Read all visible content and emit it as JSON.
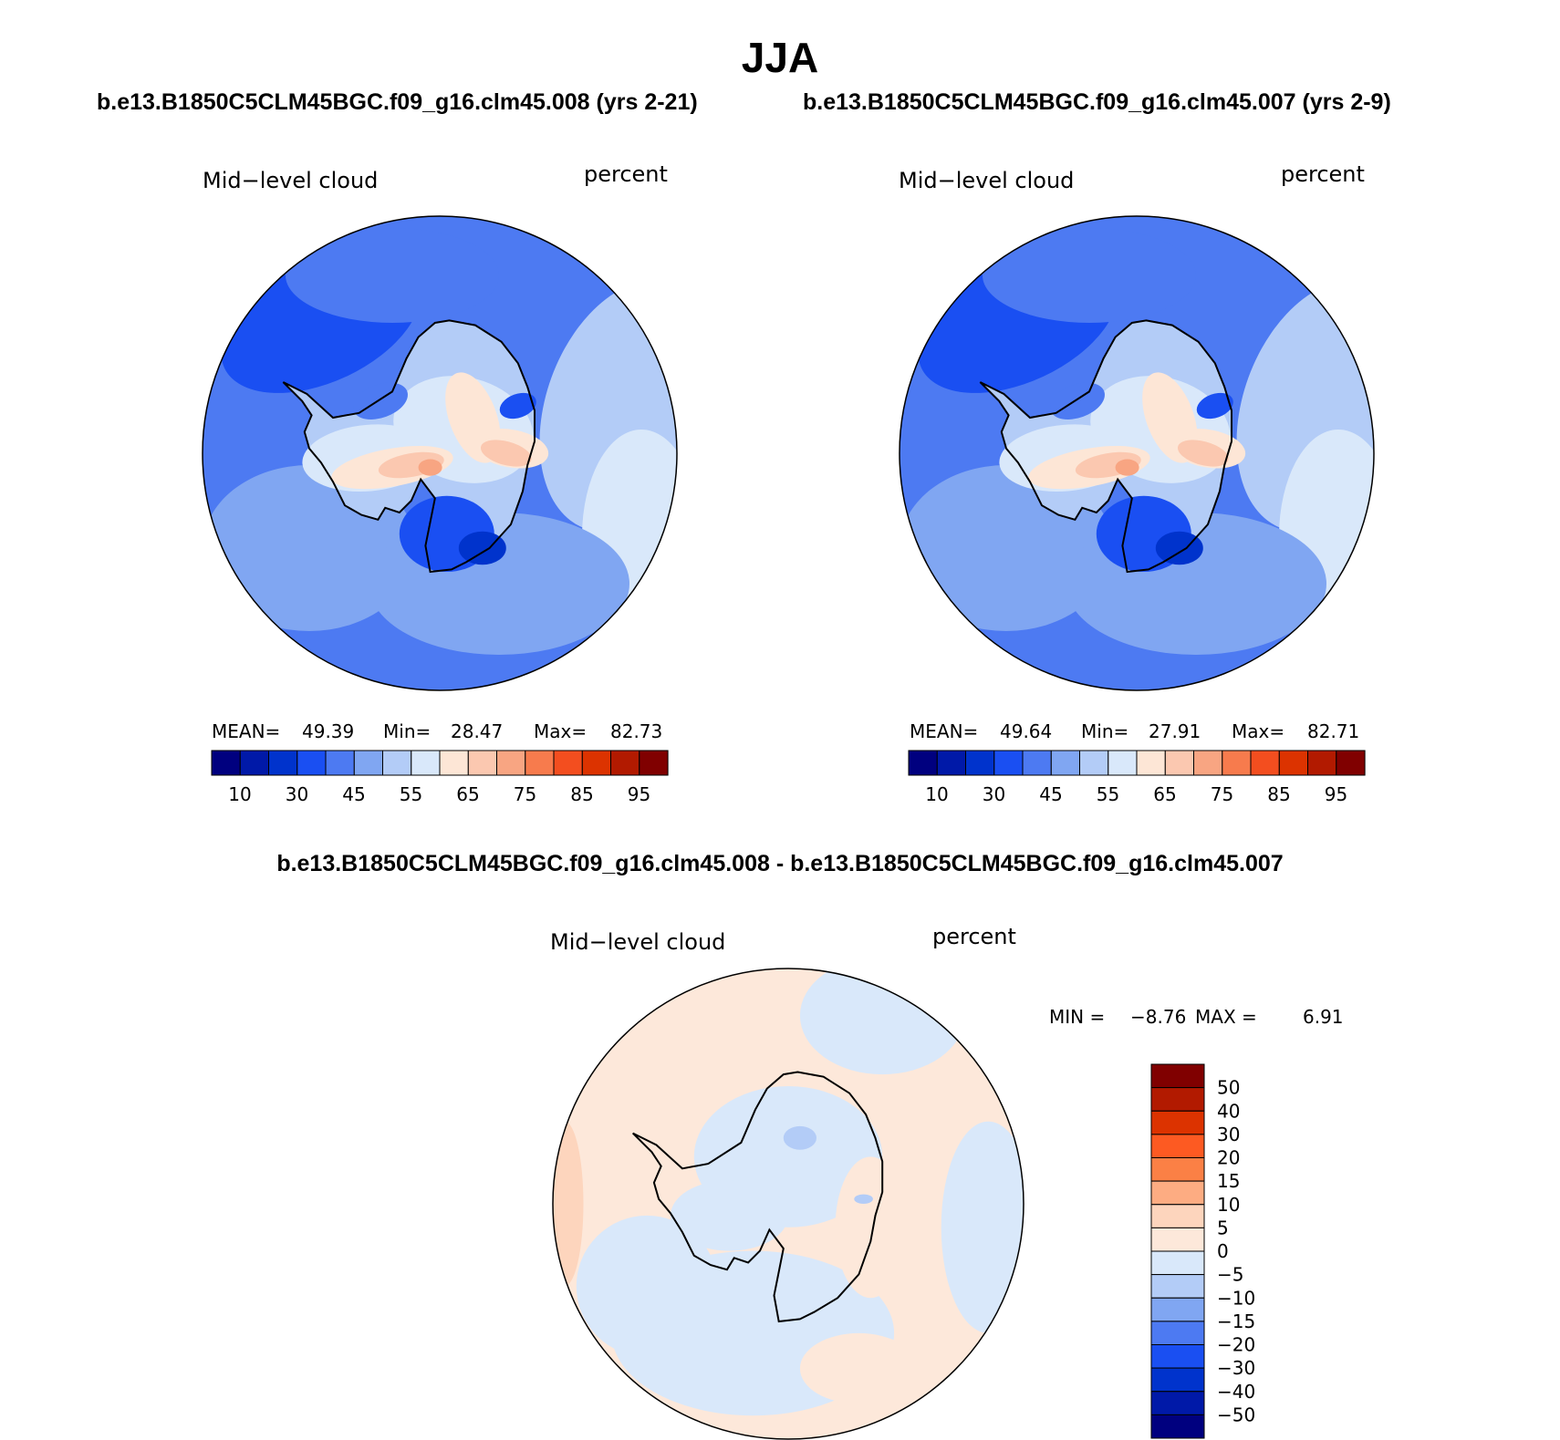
{
  "title": "JJA",
  "case1_title": "b.e13.B1850C5CLM45BGC.f09_g16.clm45.008 (yrs 2-21)",
  "case2_title": "b.e13.B1850C5CLM45BGC.f09_g16.clm45.007 (yrs 2-9)",
  "diff_title": "b.e13.B1850C5CLM45BGC.f09_g16.clm45.008 - b.e13.B1850C5CLM45BGC.f09_g16.clm45.007",
  "colors": {
    "abs_scale": [
      "#00007f",
      "#0019a8",
      "#0033cc",
      "#1a4ff2",
      "#4d7af2",
      "#80a6f2",
      "#b3ccf7",
      "#d9e8fa",
      "#fde6d6",
      "#fbc8b0",
      "#f8a582",
      "#f77b4d",
      "#f34e1f",
      "#dc3300",
      "#b21a00",
      "#800000"
    ],
    "diff_scale": [
      "#800000",
      "#b21a00",
      "#dc3300",
      "#fd5a22",
      "#fb8045",
      "#fdac82",
      "#fdd5bd",
      "#fde8da",
      "#d9e8fa",
      "#b3ccf7",
      "#80a6f2",
      "#4d7af2",
      "#1a4ff2",
      "#0033cc",
      "#0019a8",
      "#00007f"
    ]
  },
  "panels": [
    {
      "variable": "Mid−level cloud",
      "units": "percent",
      "mean_label": "MEAN=",
      "mean": "49.39",
      "min_label": "Min=",
      "min": "28.47",
      "max_label": "Max=",
      "max": "82.73"
    },
    {
      "variable": "Mid−level cloud",
      "units": "percent",
      "mean_label": "MEAN=",
      "mean": "49.64",
      "min_label": "Min=",
      "min": "27.91",
      "max_label": "Max=",
      "max": "82.71"
    }
  ],
  "diff_panel": {
    "variable": "Mid−level cloud",
    "units": "percent",
    "min_label": "MIN =",
    "min": "−8.76",
    "max_label": "MAX =",
    "max": "6.91"
  },
  "chart_data": [
    {
      "type": "heatmap",
      "title": "b.e13.B1850C5CLM45BGC.f09_g16.clm45.008 (yrs 2-21)",
      "variable": "Mid−level cloud",
      "units": "percent",
      "projection": "south polar stereographic",
      "stats": {
        "mean": 49.39,
        "min": 28.47,
        "max": 82.73
      },
      "colorbar_ticks": [
        "10",
        "30",
        "45",
        "55",
        "65",
        "75",
        "85",
        "95"
      ]
    },
    {
      "type": "heatmap",
      "title": "b.e13.B1850C5CLM45BGC.f09_g16.clm45.007 (yrs 2-9)",
      "variable": "Mid−level cloud",
      "units": "percent",
      "projection": "south polar stereographic",
      "stats": {
        "mean": 49.64,
        "min": 27.91,
        "max": 82.71
      },
      "colorbar_ticks": [
        "10",
        "30",
        "45",
        "55",
        "65",
        "75",
        "85",
        "95"
      ]
    },
    {
      "type": "heatmap",
      "title": "b.e13.B1850C5CLM45BGC.f09_g16.clm45.008 - b.e13.B1850C5CLM45BGC.f09_g16.clm45.007",
      "variable": "Mid−level cloud",
      "units": "percent",
      "projection": "south polar stereographic",
      "stats": {
        "min": -8.76,
        "max": 6.91
      },
      "colorbar_ticks": [
        "50",
        "40",
        "30",
        "20",
        "15",
        "10",
        "5",
        "0",
        "−5",
        "−10",
        "−15",
        "−20",
        "−30",
        "−40",
        "−50"
      ]
    }
  ]
}
